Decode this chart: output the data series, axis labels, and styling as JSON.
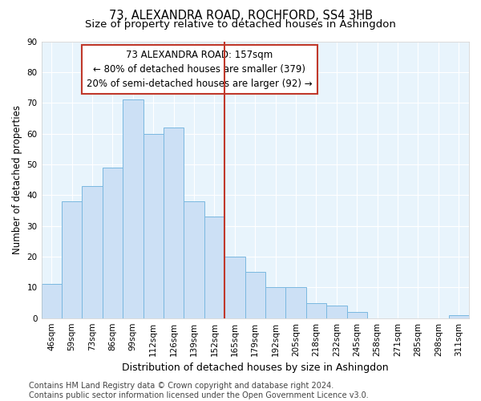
{
  "title": "73, ALEXANDRA ROAD, ROCHFORD, SS4 3HB",
  "subtitle": "Size of property relative to detached houses in Ashingdon",
  "xlabel": "Distribution of detached houses by size in Ashingdon",
  "ylabel": "Number of detached properties",
  "bar_labels": [
    "46sqm",
    "59sqm",
    "73sqm",
    "86sqm",
    "99sqm",
    "112sqm",
    "126sqm",
    "139sqm",
    "152sqm",
    "165sqm",
    "179sqm",
    "192sqm",
    "205sqm",
    "218sqm",
    "232sqm",
    "245sqm",
    "258sqm",
    "271sqm",
    "285sqm",
    "298sqm",
    "311sqm"
  ],
  "bar_values": [
    11,
    38,
    43,
    49,
    71,
    60,
    62,
    38,
    33,
    20,
    15,
    10,
    10,
    5,
    4,
    2,
    0,
    0,
    0,
    0,
    1
  ],
  "bar_color": "#cce0f5",
  "bar_edge_color": "#7ab8e0",
  "background_color": "#e8f4fc",
  "grid_color": "#ffffff",
  "vline_x": 8.5,
  "vline_color": "#c0392b",
  "annotation_text": "73 ALEXANDRA ROAD: 157sqm\n← 80% of detached houses are smaller (379)\n20% of semi-detached houses are larger (92) →",
  "annotation_box_color": "#c0392b",
  "footer_text": "Contains HM Land Registry data © Crown copyright and database right 2024.\nContains public sector information licensed under the Open Government Licence v3.0.",
  "ylim": [
    0,
    90
  ],
  "yticks": [
    0,
    10,
    20,
    30,
    40,
    50,
    60,
    70,
    80,
    90
  ],
  "title_fontsize": 10.5,
  "subtitle_fontsize": 9.5,
  "xlabel_fontsize": 9,
  "ylabel_fontsize": 8.5,
  "tick_fontsize": 7.5,
  "annotation_fontsize": 8.5,
  "footer_fontsize": 7
}
